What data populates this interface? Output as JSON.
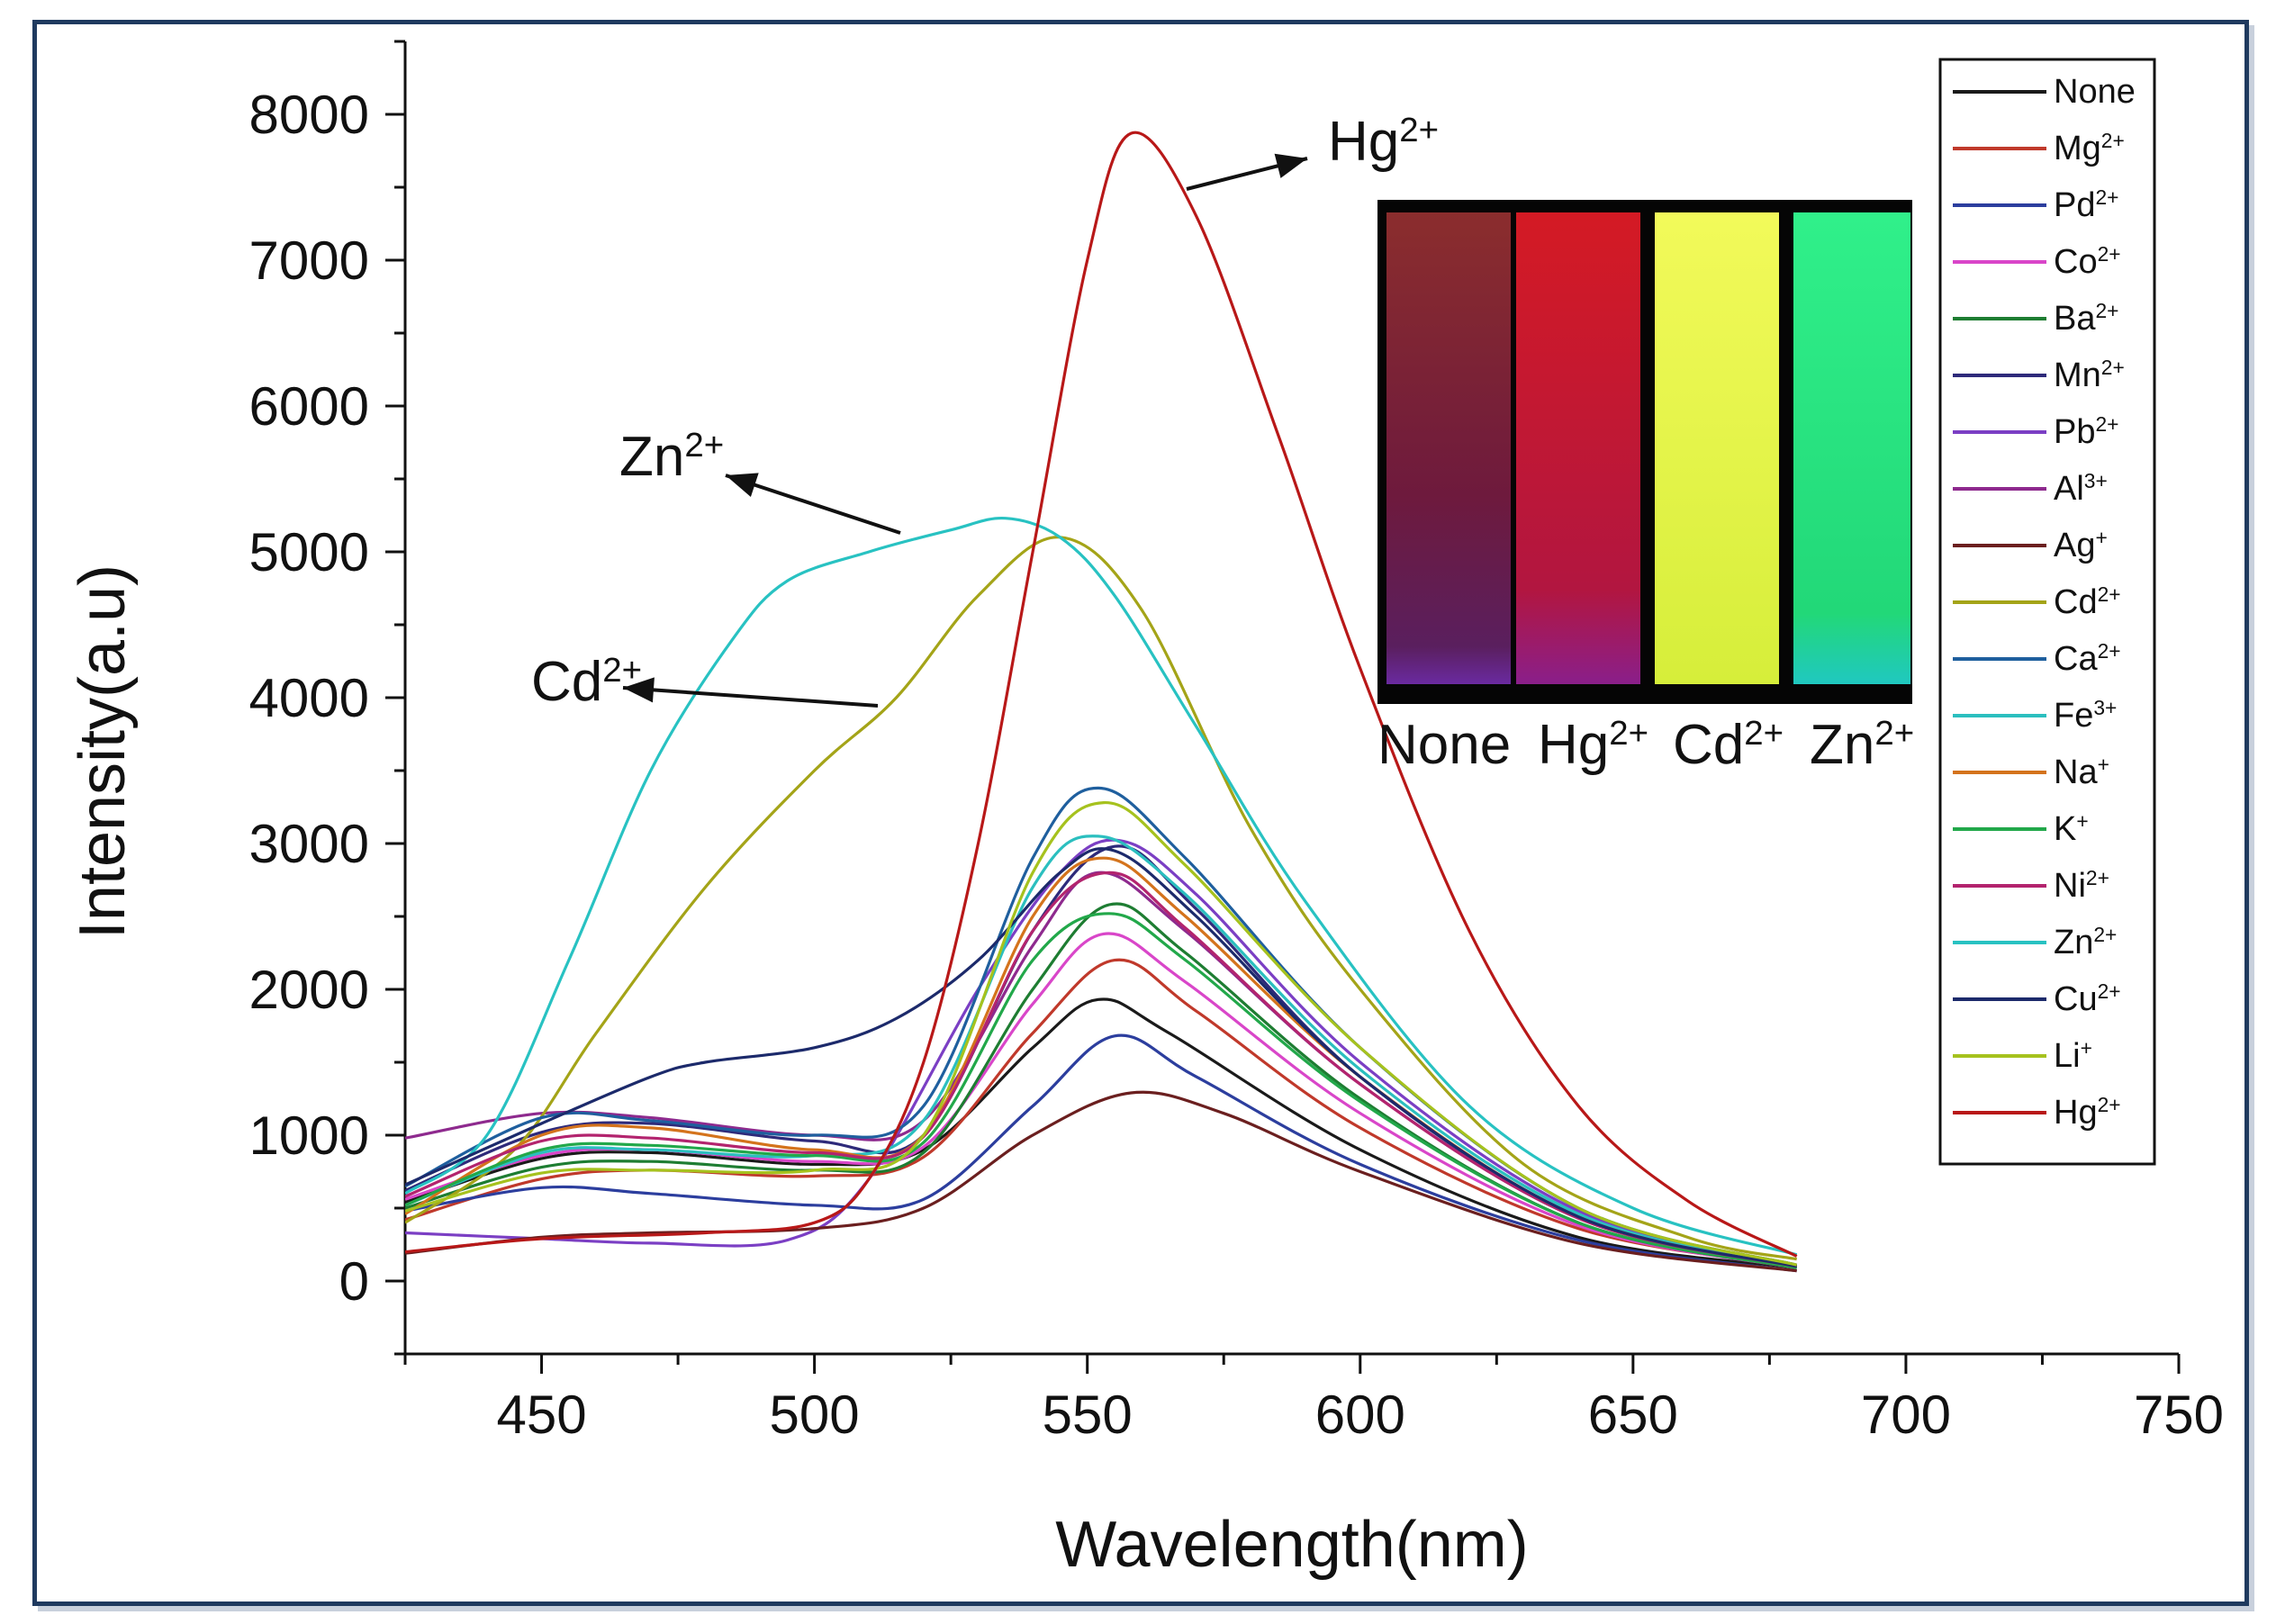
{
  "chart_data": {
    "type": "line",
    "xlabel": "Wavelength(nm)",
    "ylabel": "Intensity(a.u)",
    "xlim": [
      425,
      750
    ],
    "ylim": [
      -500,
      8500
    ],
    "x_ticks": [
      450,
      500,
      550,
      600,
      650,
      700,
      750
    ],
    "y_ticks": [
      0,
      1000,
      2000,
      3000,
      4000,
      5000,
      6000,
      7000,
      8000
    ],
    "legend_position": "top-right",
    "series": [
      {
        "name": "None",
        "sup": "",
        "color": "#1a1a1a",
        "values": [
          [
            425,
            540
          ],
          [
            450,
            840
          ],
          [
            470,
            880
          ],
          [
            500,
            800
          ],
          [
            520,
            900
          ],
          [
            540,
            1600
          ],
          [
            552,
            1930
          ],
          [
            565,
            1700
          ],
          [
            600,
            900
          ],
          [
            640,
            300
          ],
          [
            680,
            90
          ]
        ]
      },
      {
        "name": "Mg",
        "sup": "2+",
        "color": "#c0392b",
        "values": [
          [
            425,
            420
          ],
          [
            450,
            700
          ],
          [
            470,
            760
          ],
          [
            500,
            720
          ],
          [
            520,
            850
          ],
          [
            540,
            1700
          ],
          [
            555,
            2200
          ],
          [
            570,
            1850
          ],
          [
            600,
            1050
          ],
          [
            640,
            360
          ],
          [
            680,
            100
          ]
        ]
      },
      {
        "name": "Pd",
        "sup": "2+",
        "color": "#2c3e9e",
        "values": [
          [
            425,
            480
          ],
          [
            450,
            640
          ],
          [
            470,
            600
          ],
          [
            500,
            520
          ],
          [
            520,
            560
          ],
          [
            540,
            1200
          ],
          [
            555,
            1680
          ],
          [
            570,
            1400
          ],
          [
            600,
            800
          ],
          [
            640,
            280
          ],
          [
            680,
            70
          ]
        ]
      },
      {
        "name": "Co",
        "sup": "2+",
        "color": "#d946c9",
        "values": [
          [
            425,
            560
          ],
          [
            450,
            860
          ],
          [
            470,
            900
          ],
          [
            500,
            820
          ],
          [
            520,
            920
          ],
          [
            540,
            1900
          ],
          [
            553,
            2380
          ],
          [
            568,
            2050
          ],
          [
            600,
            1150
          ],
          [
            640,
            380
          ],
          [
            680,
            90
          ]
        ]
      },
      {
        "name": "Ba",
        "sup": "2+",
        "color": "#1e7d32",
        "values": [
          [
            425,
            500
          ],
          [
            450,
            780
          ],
          [
            470,
            820
          ],
          [
            500,
            760
          ],
          [
            520,
            880
          ],
          [
            540,
            2000
          ],
          [
            554,
            2580
          ],
          [
            568,
            2250
          ],
          [
            600,
            1250
          ],
          [
            640,
            400
          ],
          [
            680,
            90
          ]
        ]
      },
      {
        "name": "Mn",
        "sup": "2+",
        "color": "#2e2a7a",
        "values": [
          [
            425,
            620
          ],
          [
            450,
            1020
          ],
          [
            470,
            1080
          ],
          [
            500,
            960
          ],
          [
            520,
            1000
          ],
          [
            540,
            2400
          ],
          [
            555,
            2980
          ],
          [
            570,
            2550
          ],
          [
            600,
            1400
          ],
          [
            640,
            440
          ],
          [
            680,
            100
          ]
        ]
      },
      {
        "name": "Pb",
        "sup": "2+",
        "color": "#7b3fc4",
        "values": [
          [
            425,
            330
          ],
          [
            450,
            290
          ],
          [
            470,
            260
          ],
          [
            495,
            280
          ],
          [
            510,
            700
          ],
          [
            530,
            2000
          ],
          [
            545,
            2800
          ],
          [
            556,
            3020
          ],
          [
            570,
            2650
          ],
          [
            600,
            1500
          ],
          [
            640,
            480
          ],
          [
            680,
            110
          ]
        ]
      },
      {
        "name": "Al",
        "sup": "3+",
        "color": "#8e2a8e",
        "values": [
          [
            425,
            980
          ],
          [
            450,
            1150
          ],
          [
            470,
            1120
          ],
          [
            500,
            1000
          ],
          [
            520,
            1100
          ],
          [
            540,
            2300
          ],
          [
            552,
            2800
          ],
          [
            568,
            2400
          ],
          [
            600,
            1350
          ],
          [
            640,
            430
          ],
          [
            680,
            100
          ]
        ]
      },
      {
        "name": "Ag",
        "sup": "+",
        "color": "#6b1f1f",
        "values": [
          [
            425,
            190
          ],
          [
            450,
            300
          ],
          [
            470,
            330
          ],
          [
            500,
            360
          ],
          [
            520,
            500
          ],
          [
            540,
            1000
          ],
          [
            558,
            1290
          ],
          [
            575,
            1150
          ],
          [
            600,
            750
          ],
          [
            640,
            260
          ],
          [
            680,
            70
          ]
        ]
      },
      {
        "name": "Cd",
        "sup": "2+",
        "color": "#a4a418",
        "values": [
          [
            425,
            400
          ],
          [
            445,
            900
          ],
          [
            460,
            1700
          ],
          [
            480,
            2700
          ],
          [
            500,
            3500
          ],
          [
            515,
            4000
          ],
          [
            530,
            4700
          ],
          [
            545,
            5100
          ],
          [
            560,
            4600
          ],
          [
            580,
            3100
          ],
          [
            600,
            2000
          ],
          [
            630,
            800
          ],
          [
            660,
            300
          ],
          [
            680,
            150
          ]
        ]
      },
      {
        "name": "Ca",
        "sup": "2+",
        "color": "#1f5f9e",
        "values": [
          [
            425,
            650
          ],
          [
            450,
            1120
          ],
          [
            470,
            1100
          ],
          [
            500,
            1000
          ],
          [
            520,
            1200
          ],
          [
            540,
            2900
          ],
          [
            552,
            3380
          ],
          [
            568,
            2900
          ],
          [
            600,
            1600
          ],
          [
            640,
            500
          ],
          [
            680,
            110
          ]
        ]
      },
      {
        "name": "Fe",
        "sup": "3+",
        "color": "#2bbfbf",
        "values": [
          [
            425,
            520
          ],
          [
            450,
            880
          ],
          [
            470,
            900
          ],
          [
            500,
            860
          ],
          [
            520,
            1100
          ],
          [
            540,
            2700
          ],
          [
            552,
            3050
          ],
          [
            568,
            2650
          ],
          [
            600,
            1450
          ],
          [
            640,
            460
          ],
          [
            680,
            100
          ]
        ]
      },
      {
        "name": "Na",
        "sup": "+",
        "color": "#d4731c",
        "values": [
          [
            425,
            460
          ],
          [
            450,
            1000
          ],
          [
            470,
            1050
          ],
          [
            500,
            900
          ],
          [
            520,
            1000
          ],
          [
            540,
            2500
          ],
          [
            553,
            2900
          ],
          [
            568,
            2500
          ],
          [
            600,
            1400
          ],
          [
            640,
            440
          ],
          [
            680,
            100
          ]
        ]
      },
      {
        "name": "K",
        "sup": "+",
        "color": "#22a84a",
        "values": [
          [
            425,
            520
          ],
          [
            450,
            900
          ],
          [
            470,
            930
          ],
          [
            500,
            860
          ],
          [
            520,
            950
          ],
          [
            540,
            2200
          ],
          [
            554,
            2520
          ],
          [
            568,
            2200
          ],
          [
            600,
            1230
          ],
          [
            640,
            400
          ],
          [
            680,
            90
          ]
        ]
      },
      {
        "name": "Ni",
        "sup": "2+",
        "color": "#b3246e",
        "values": [
          [
            425,
            580
          ],
          [
            450,
            960
          ],
          [
            470,
            980
          ],
          [
            500,
            880
          ],
          [
            520,
            990
          ],
          [
            540,
            2400
          ],
          [
            554,
            2800
          ],
          [
            568,
            2420
          ],
          [
            600,
            1350
          ],
          [
            640,
            430
          ],
          [
            680,
            100
          ]
        ]
      },
      {
        "name": "Zn",
        "sup": "2+",
        "color": "#28c2c2",
        "values": [
          [
            425,
            600
          ],
          [
            440,
            1000
          ],
          [
            455,
            2200
          ],
          [
            470,
            3500
          ],
          [
            485,
            4400
          ],
          [
            495,
            4800
          ],
          [
            510,
            5000
          ],
          [
            525,
            5150
          ],
          [
            535,
            5230
          ],
          [
            545,
            5100
          ],
          [
            555,
            4700
          ],
          [
            570,
            3800
          ],
          [
            590,
            2600
          ],
          [
            620,
            1200
          ],
          [
            650,
            500
          ],
          [
            680,
            180
          ]
        ]
      },
      {
        "name": "Cu",
        "sup": "2+",
        "color": "#1c2a6b",
        "values": [
          [
            425,
            660
          ],
          [
            450,
            1080
          ],
          [
            470,
            1400
          ],
          [
            480,
            1500
          ],
          [
            500,
            1600
          ],
          [
            515,
            1800
          ],
          [
            530,
            2200
          ],
          [
            545,
            2800
          ],
          [
            555,
            2950
          ],
          [
            570,
            2500
          ],
          [
            600,
            1400
          ],
          [
            640,
            440
          ],
          [
            680,
            100
          ]
        ]
      },
      {
        "name": "Li",
        "sup": "+",
        "color": "#a6c21e",
        "values": [
          [
            425,
            480
          ],
          [
            450,
            740
          ],
          [
            470,
            760
          ],
          [
            500,
            760
          ],
          [
            520,
            1000
          ],
          [
            540,
            2800
          ],
          [
            553,
            3280
          ],
          [
            568,
            2850
          ],
          [
            600,
            1600
          ],
          [
            640,
            500
          ],
          [
            680,
            110
          ]
        ]
      },
      {
        "name": "Hg",
        "sup": "2+",
        "color": "#b81818",
        "values": [
          [
            425,
            200
          ],
          [
            450,
            290
          ],
          [
            480,
            330
          ],
          [
            500,
            400
          ],
          [
            510,
            700
          ],
          [
            520,
            1500
          ],
          [
            530,
            3000
          ],
          [
            540,
            5000
          ],
          [
            550,
            7000
          ],
          [
            558,
            7870
          ],
          [
            570,
            7300
          ],
          [
            585,
            5800
          ],
          [
            600,
            4200
          ],
          [
            620,
            2400
          ],
          [
            640,
            1200
          ],
          [
            660,
            550
          ],
          [
            680,
            170
          ]
        ]
      }
    ],
    "annotations": [
      {
        "name": "Hg",
        "sup": "2+"
      },
      {
        "name": "Zn",
        "sup": "2+"
      },
      {
        "name": "Cd",
        "sup": "2+"
      }
    ],
    "inset": {
      "labels": [
        {
          "name": "None",
          "sup": ""
        },
        {
          "name": "Hg",
          "sup": "2+"
        },
        {
          "name": "Cd",
          "sup": "2+"
        },
        {
          "name": "Zn",
          "sup": "2+"
        }
      ],
      "colors": [
        "#7a1f3a",
        "#c01a2e",
        "#e4f050",
        "#29e07a"
      ]
    }
  }
}
